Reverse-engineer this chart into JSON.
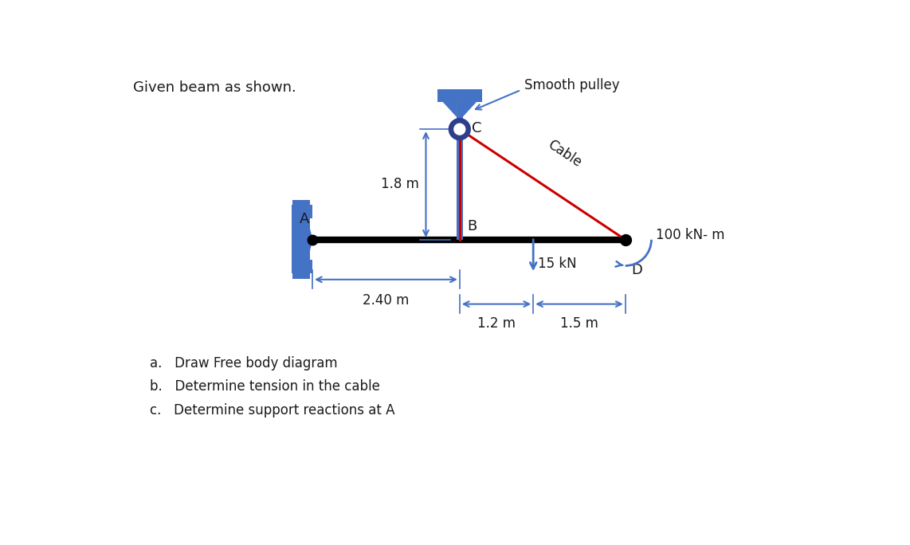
{
  "title": "Given beam as shown.",
  "bg_color": "#ffffff",
  "beam_color": "#000000",
  "blue_color": "#4472C4",
  "red_color": "#CC0000",
  "dark_color": "#1a1a1a",
  "points": {
    "A": [
      3.2,
      4.0
    ],
    "B": [
      5.6,
      4.0
    ],
    "C": [
      5.6,
      5.8
    ],
    "D": [
      8.3,
      4.0
    ]
  },
  "questions": [
    "a.   Draw Free body diagram",
    "b.   Determine tension in the cable",
    "c.   Determine support reactions at A"
  ],
  "labels": {
    "title": "Given beam as shown.",
    "smooth_pulley": "Smooth pulley",
    "cable": "Cable",
    "A": "A",
    "B": "B",
    "C": "C",
    "D": "D",
    "dim_18": "1.8 m",
    "dim_24": "2.40 m",
    "dim_12": "1.2 m",
    "dim_15": "1.5 m",
    "force_15": "15 kN",
    "moment_100": "100 kN- m"
  }
}
